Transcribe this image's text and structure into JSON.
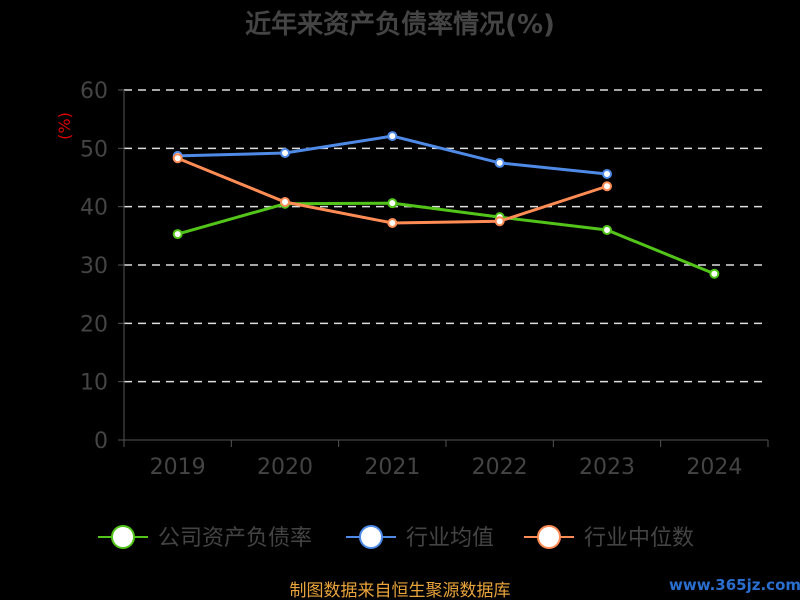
{
  "chart_data": {
    "type": "line",
    "title": "近年来资产负债率情况(%)",
    "ylabel": "(%)",
    "xlabel": "",
    "categories": [
      "2019",
      "2020",
      "2021",
      "2022",
      "2023",
      "2024"
    ],
    "ylim": [
      0,
      60
    ],
    "yticks": [
      0,
      10,
      20,
      30,
      40,
      50,
      60
    ],
    "grid": true,
    "legend_position": "bottom",
    "series": [
      {
        "name": "公司资产负债率",
        "color": "#52c41a",
        "values": [
          35.3,
          40.5,
          40.6,
          38.2,
          36.0,
          28.5
        ]
      },
      {
        "name": "行业均值",
        "color": "#4e8ae6",
        "values": [
          48.7,
          49.2,
          52.1,
          47.5,
          45.6,
          null
        ]
      },
      {
        "name": "行业中位数",
        "color": "#ff8c55",
        "values": [
          48.3,
          40.8,
          37.2,
          37.5,
          43.5,
          null
        ]
      }
    ]
  },
  "source": "制图数据来自恒生聚源数据库",
  "watermark": "www.365jz.com"
}
